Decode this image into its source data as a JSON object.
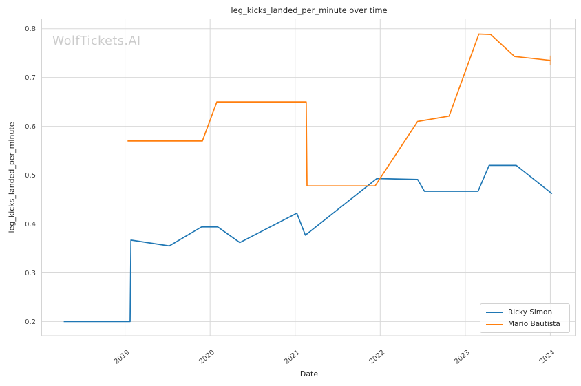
{
  "chart_data": {
    "type": "line",
    "title": "leg_kicks_landed_per_minute over time",
    "watermark": "WolfTickets.AI",
    "xlabel": "Date",
    "ylabel": "leg_kicks_landed_per_minute",
    "x_tick_values": [
      2019,
      2020,
      2021,
      2022,
      2023,
      2024
    ],
    "x_tick_labels": [
      "2019",
      "2020",
      "2021",
      "2022",
      "2023",
      "2024"
    ],
    "y_tick_values": [
      0.2,
      0.3,
      0.4,
      0.5,
      0.6,
      0.7,
      0.8
    ],
    "y_tick_labels": [
      "0.2",
      "0.3",
      "0.4",
      "0.5",
      "0.6",
      "0.7",
      "0.8"
    ],
    "xlim": [
      2018.02,
      2024.3
    ],
    "ylim": [
      0.171,
      0.82
    ],
    "grid": true,
    "legend_position": "lower right",
    "colors": {
      "background": "#ffffff",
      "grid": "#d8d8d8",
      "spine": "#d4d4d4",
      "text": "#262626",
      "tick_text": "#3d3d3d",
      "watermark": "#cbcbcb"
    },
    "series": [
      {
        "name": "Ricky Simon",
        "color": "#1f77b4",
        "end_tick": false,
        "points": [
          [
            2018.28,
            0.2
          ],
          [
            2019.06,
            0.2
          ],
          [
            2019.07,
            0.367
          ],
          [
            2019.52,
            0.355
          ],
          [
            2019.9,
            0.394
          ],
          [
            2020.09,
            0.394
          ],
          [
            2020.35,
            0.362
          ],
          [
            2021.02,
            0.422
          ],
          [
            2021.12,
            0.377
          ],
          [
            2021.96,
            0.493
          ],
          [
            2022.44,
            0.491
          ],
          [
            2022.52,
            0.467
          ],
          [
            2023.15,
            0.467
          ],
          [
            2023.28,
            0.52
          ],
          [
            2023.6,
            0.52
          ],
          [
            2024.02,
            0.462
          ]
        ]
      },
      {
        "name": "Mario Bautista",
        "color": "#ff7f0e",
        "end_tick": true,
        "points": [
          [
            2019.03,
            0.57
          ],
          [
            2019.91,
            0.57
          ],
          [
            2020.08,
            0.65
          ],
          [
            2021.13,
            0.65
          ],
          [
            2021.14,
            0.478
          ],
          [
            2021.94,
            0.478
          ],
          [
            2022.44,
            0.61
          ],
          [
            2022.81,
            0.621
          ],
          [
            2023.16,
            0.789
          ],
          [
            2023.3,
            0.788
          ],
          [
            2023.58,
            0.743
          ],
          [
            2024.0,
            0.735
          ]
        ]
      }
    ]
  }
}
